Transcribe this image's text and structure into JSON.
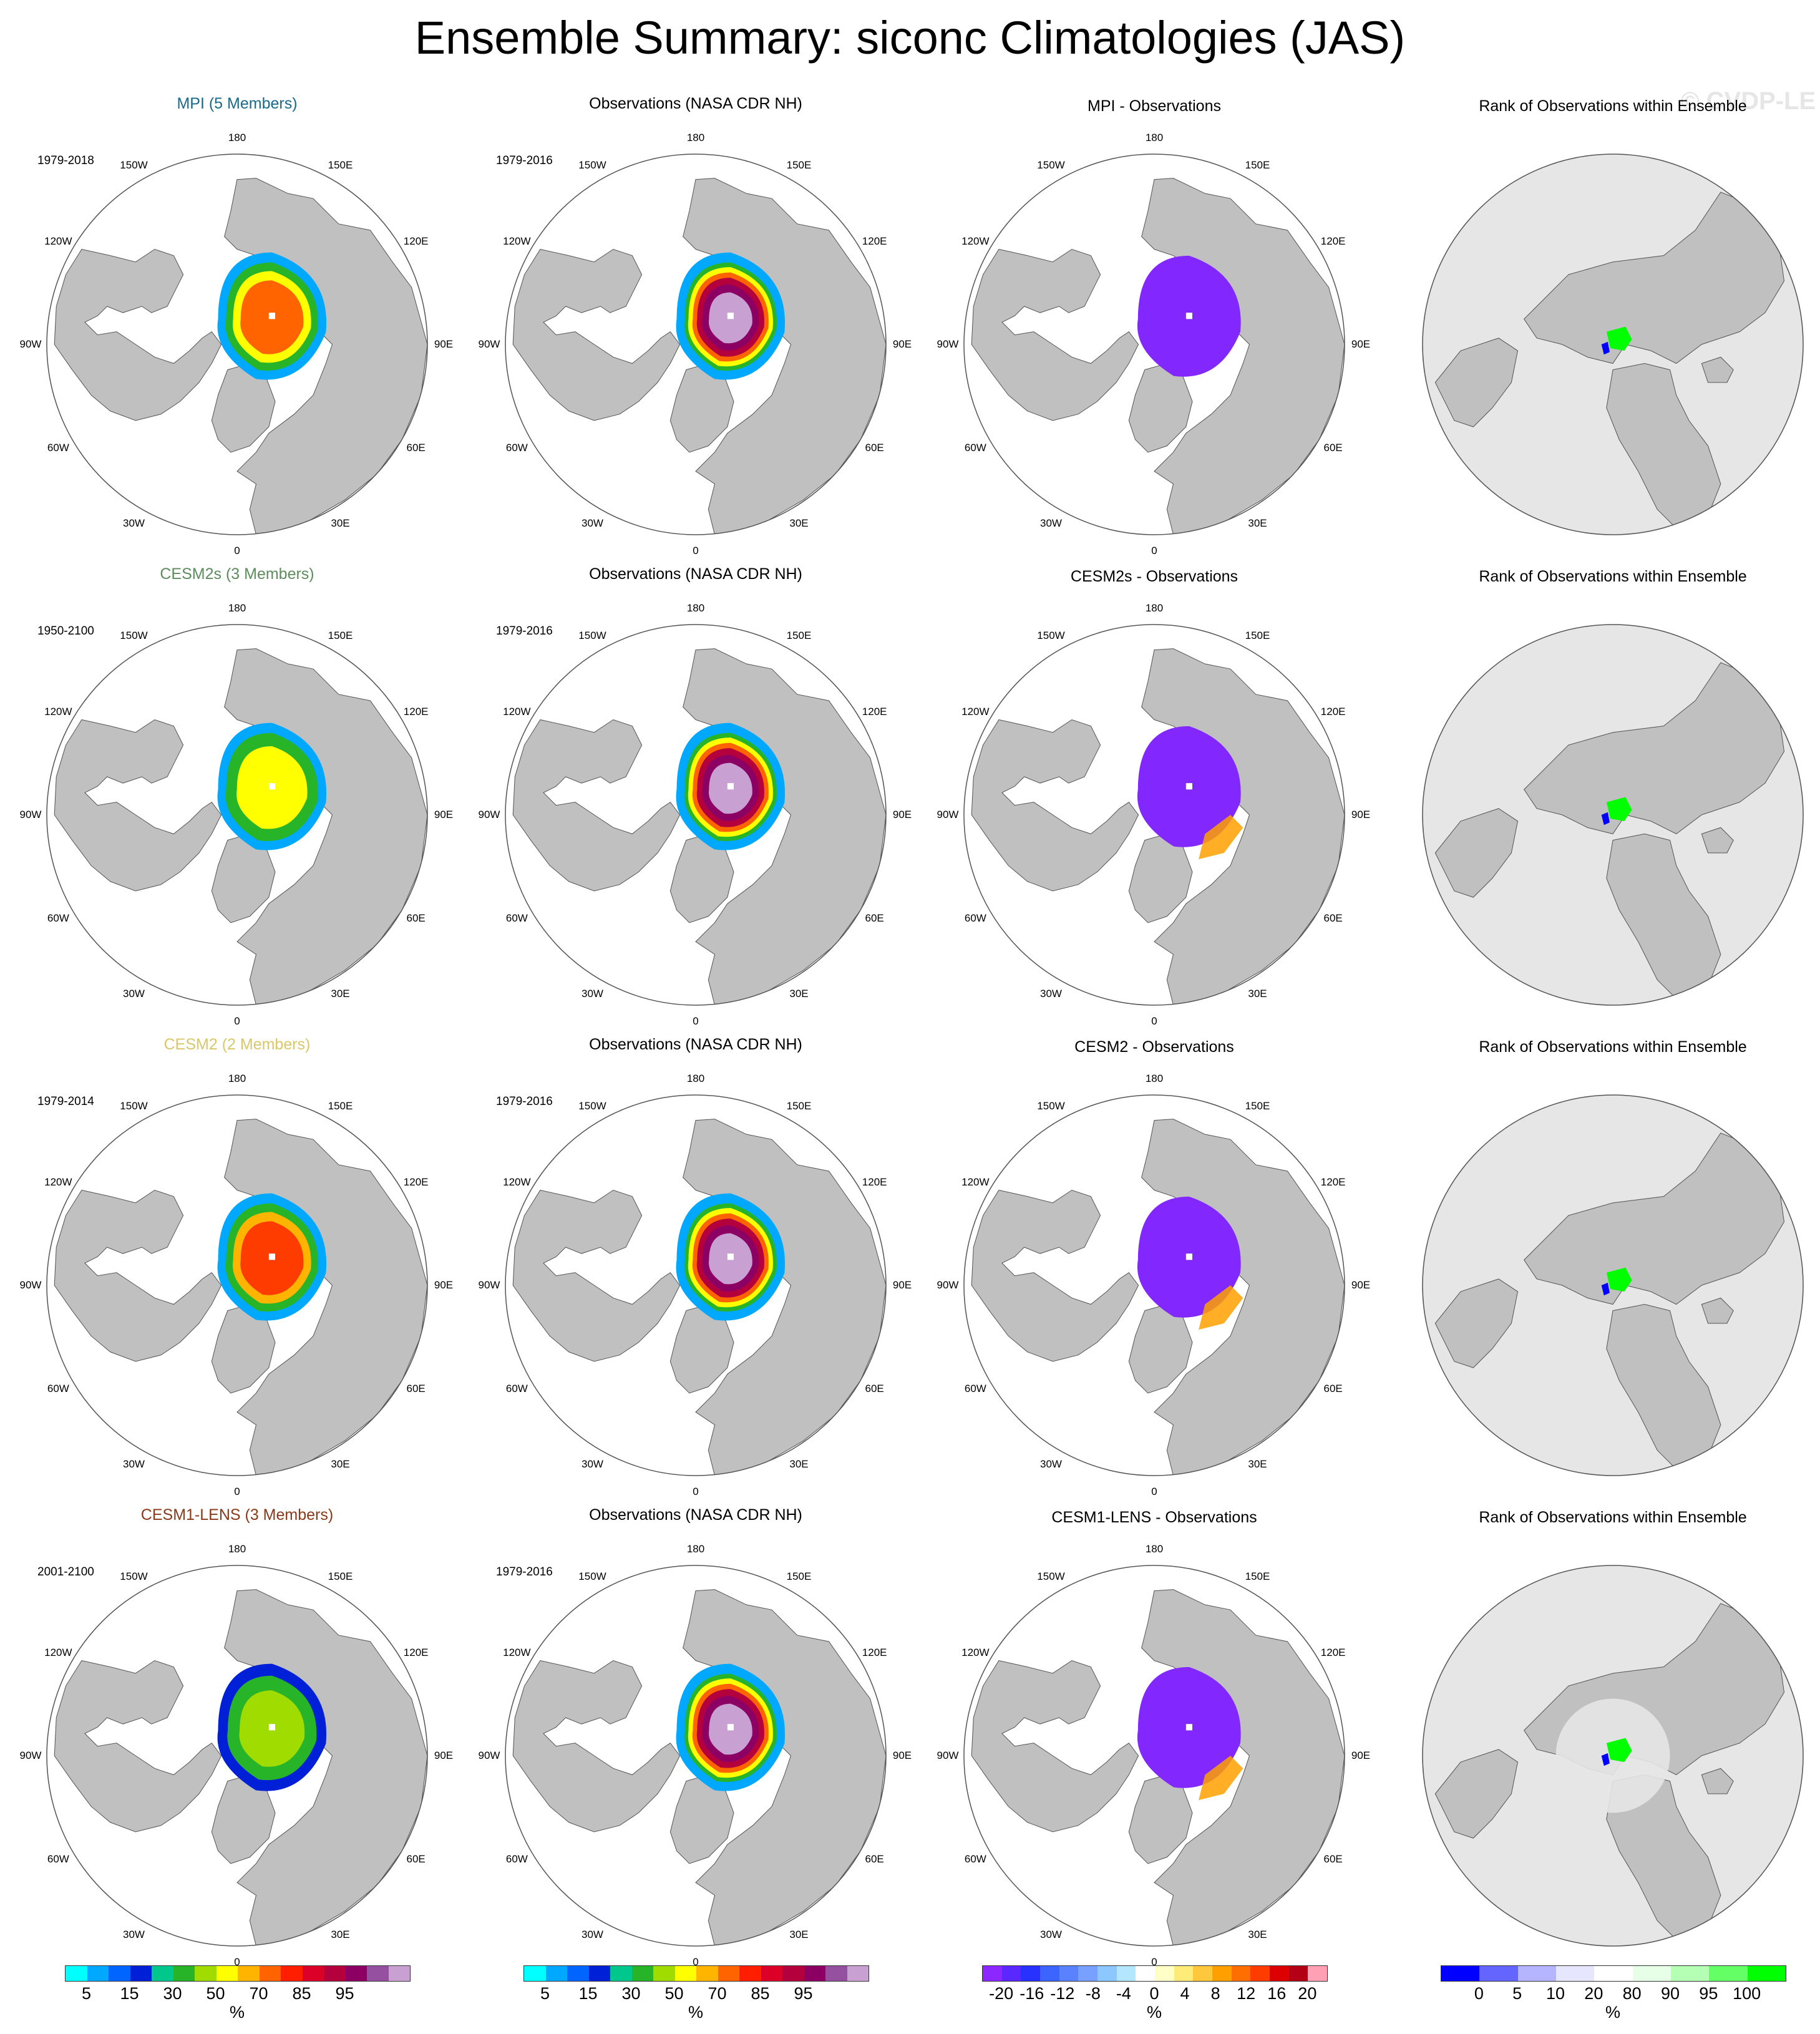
{
  "title": "Ensemble Summary: siconc Climatologies (JAS)",
  "watermark": "© CVDP-LE",
  "colors": {
    "land": "#c0c0c0",
    "rank_background": "#e6e6e6",
    "mpi_title": "#1a6a8a",
    "cesm2s_title": "#5e8c5e",
    "cesm2_title": "#d8c86a",
    "cesm1_title": "#8a3a1a"
  },
  "lon_labels": [
    "180",
    "150E",
    "120E",
    "90E",
    "60E",
    "30E",
    "0",
    "30W",
    "60W",
    "90W",
    "120W",
    "150W"
  ],
  "rows": [
    {
      "model_title": "MPI (5 Members)",
      "model_color": "#1a6a8a",
      "model_years": "1979-2018",
      "obs_title": "Observations (NASA CDR NH)",
      "obs_years": "1979-2016",
      "diff_title": "MPI - Observations",
      "rank_title": "Rank of Observations within Ensemble"
    },
    {
      "model_title": "CESM2s (3 Members)",
      "model_color": "#5e8c5e",
      "model_years": "1950-2100",
      "obs_title": "Observations (NASA CDR NH)",
      "obs_years": "1979-2016",
      "diff_title": "CESM2s - Observations",
      "rank_title": "Rank of Observations within Ensemble"
    },
    {
      "model_title": "CESM2 (2 Members)",
      "model_color": "#d8c86a",
      "model_years": "1979-2014",
      "obs_title": "Observations (NASA CDR NH)",
      "obs_years": "1979-2016",
      "diff_title": "CESM2 - Observations",
      "rank_title": "Rank of Observations within Ensemble"
    },
    {
      "model_title": "CESM1-LENS (3 Members)",
      "model_color": "#8a3a1a",
      "model_years": "2001-2100",
      "obs_title": "Observations (NASA CDR NH)",
      "obs_years": "1979-2016",
      "diff_title": "CESM1-LENS - Observations",
      "rank_title": "Rank of Observations within Ensemble"
    }
  ],
  "colorbars": [
    {
      "name": "siconc",
      "colors": [
        "#00ffff",
        "#00a8ff",
        "#0064ff",
        "#0020d8",
        "#00c88c",
        "#28b428",
        "#a0dc00",
        "#ffff00",
        "#ffb400",
        "#ff6400",
        "#ff1e00",
        "#dc0028",
        "#b4003c",
        "#8c0064",
        "#9650a0",
        "#c8a0d2"
      ],
      "ticks": [
        "5",
        "15",
        "30",
        "50",
        "70",
        "85",
        "95"
      ],
      "unit": "%"
    },
    {
      "name": "siconc-obs",
      "colors": [
        "#00ffff",
        "#00a8ff",
        "#0064ff",
        "#0020d8",
        "#00c88c",
        "#28b428",
        "#a0dc00",
        "#ffff00",
        "#ffb400",
        "#ff6400",
        "#ff1e00",
        "#dc0028",
        "#b4003c",
        "#8c0064",
        "#9650a0",
        "#c8a0d2"
      ],
      "ticks": [
        "5",
        "15",
        "30",
        "50",
        "70",
        "85",
        "95"
      ],
      "unit": "%"
    },
    {
      "name": "difference",
      "colors": [
        "#8c28ff",
        "#5a28ff",
        "#2832ff",
        "#3c64ff",
        "#5a82ff",
        "#78a0ff",
        "#8cc8ff",
        "#b4e6ff",
        "#ffffff",
        "#ffffc8",
        "#ffeb78",
        "#ffc83c",
        "#ffa000",
        "#ff6e00",
        "#ff3c00",
        "#dc0000",
        "#b40014",
        "#ffa0b4"
      ],
      "ticks": [
        "-20",
        "-16",
        "-12",
        "-8",
        "-4",
        "0",
        "4",
        "8",
        "12",
        "16",
        "20"
      ],
      "unit": "%"
    },
    {
      "name": "rank",
      "colors": [
        "#0000ff",
        "#6464ff",
        "#b4b4ff",
        "#e6e6ff",
        "#ffffff",
        "#e6ffe6",
        "#b4ffb4",
        "#64ff64",
        "#00ff00"
      ],
      "ticks": [
        "0",
        "5",
        "10",
        "20",
        "80",
        "90",
        "95",
        "100"
      ],
      "unit": "%"
    }
  ]
}
